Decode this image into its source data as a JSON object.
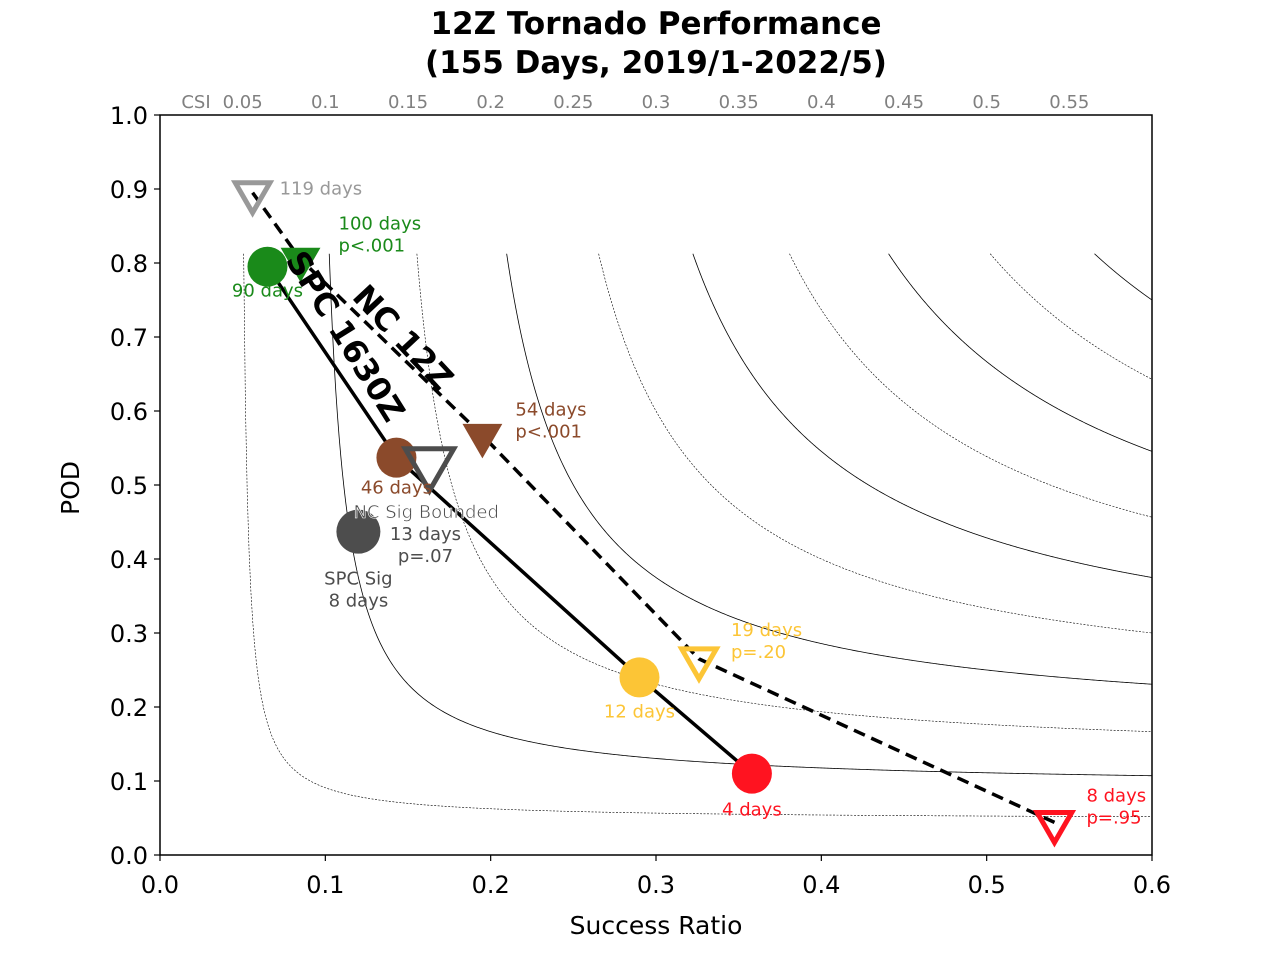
{
  "chart_data": {
    "type": "scatter",
    "subtype": "performance-diagram",
    "title_line1": "12Z Tornado Performance",
    "title_line2": "(155 Days, 2019/1-2022/5)",
    "xlabel": "Success Ratio",
    "ylabel": "POD",
    "xlim": [
      0,
      0.6
    ],
    "ylim": [
      0,
      1.0
    ],
    "xticks": [
      "0.0",
      "0.1",
      "0.2",
      "0.3",
      "0.4",
      "0.5",
      "0.6"
    ],
    "yticks": [
      "0.0",
      "0.1",
      "0.2",
      "0.3",
      "0.4",
      "0.5",
      "0.6",
      "0.7",
      "0.8",
      "0.9",
      "1.0"
    ],
    "csi_label": "CSI",
    "csi_ticks": [
      "0.05",
      "0.1",
      "0.15",
      "0.2",
      "0.25",
      "0.3",
      "0.35",
      "0.4",
      "0.45",
      "0.5",
      "0.55"
    ],
    "csi_values": [
      0.05,
      0.1,
      0.15,
      0.2,
      0.25,
      0.3,
      0.35,
      0.4,
      0.45,
      0.5,
      0.55
    ],
    "grid": false,
    "series": [
      {
        "name": "SPC 1630Z",
        "line_style": "solid",
        "marker": "filled-circle",
        "points": [
          {
            "x": 0.065,
            "y": 0.795,
            "color": "#1a8a1a",
            "label_lines": [
              "90 days"
            ]
          },
          {
            "x": 0.143,
            "y": 0.537,
            "color": "#8b4a2b",
            "label_lines": [
              "46 days"
            ]
          },
          {
            "x": 0.29,
            "y": 0.24,
            "color": "#fcc536",
            "label_lines": [
              "12 days"
            ]
          },
          {
            "x": 0.358,
            "y": 0.11,
            "color": "#ff1320",
            "label_lines": [
              "4 days"
            ]
          }
        ]
      },
      {
        "name": "NC 12Z",
        "line_style": "dashed",
        "marker": "triangle-down",
        "points": [
          {
            "x": 0.056,
            "y": 0.895,
            "color": "#999999",
            "filled": false,
            "label_lines": [
              "119 days"
            ]
          },
          {
            "x": 0.085,
            "y": 0.805,
            "color": "#1a8a1a",
            "filled": true,
            "label_lines": [
              "100 days",
              "p<.001"
            ]
          },
          {
            "x": 0.195,
            "y": 0.567,
            "color": "#8b4a2b",
            "filled": true,
            "label_lines": [
              "54 days",
              "p<.001"
            ]
          },
          {
            "x": 0.326,
            "y": 0.265,
            "color": "#fcc536",
            "filled": false,
            "label_lines": [
              "19 days",
              "p=.20"
            ]
          },
          {
            "x": 0.541,
            "y": 0.044,
            "color": "#ff1320",
            "filled": false,
            "label_lines": [
              "8 days",
              "p=.95"
            ]
          }
        ]
      }
    ],
    "extra_points": [
      {
        "marker": "filled-circle",
        "x": 0.12,
        "y": 0.437,
        "color": "#4d4d4d",
        "label_lines": [
          "SPC Sig",
          "8 days"
        ]
      },
      {
        "marker": "triangle-down",
        "filled": false,
        "x": 0.163,
        "y": 0.53,
        "color": "#4d4d4d",
        "label_lines": [
          "NC Sig Bounded",
          "13 days",
          "p=.07"
        ]
      }
    ]
  }
}
